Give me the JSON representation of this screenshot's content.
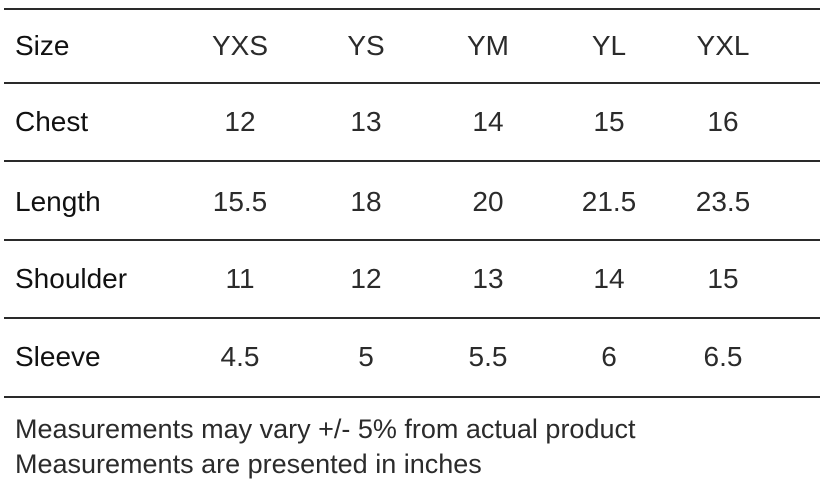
{
  "table": {
    "header": {
      "label": "Size",
      "columns": [
        "YXS",
        "YS",
        "YM",
        "YL",
        "YXL"
      ]
    },
    "rows": [
      {
        "label": "Chest",
        "values": [
          "12",
          "13",
          "14",
          "15",
          "16"
        ]
      },
      {
        "label": "Length",
        "values": [
          "15.5",
          "18",
          "20",
          "21.5",
          "23.5"
        ]
      },
      {
        "label": "Shoulder",
        "values": [
          "11",
          "12",
          "13",
          "14",
          "15"
        ]
      },
      {
        "label": "Sleeve",
        "values": [
          "4.5",
          "5",
          "5.5",
          "6",
          "6.5"
        ]
      }
    ]
  },
  "notes": {
    "variance": "Measurements may vary +/- 5% from actual product",
    "units": "Measurements are presented in inches"
  }
}
